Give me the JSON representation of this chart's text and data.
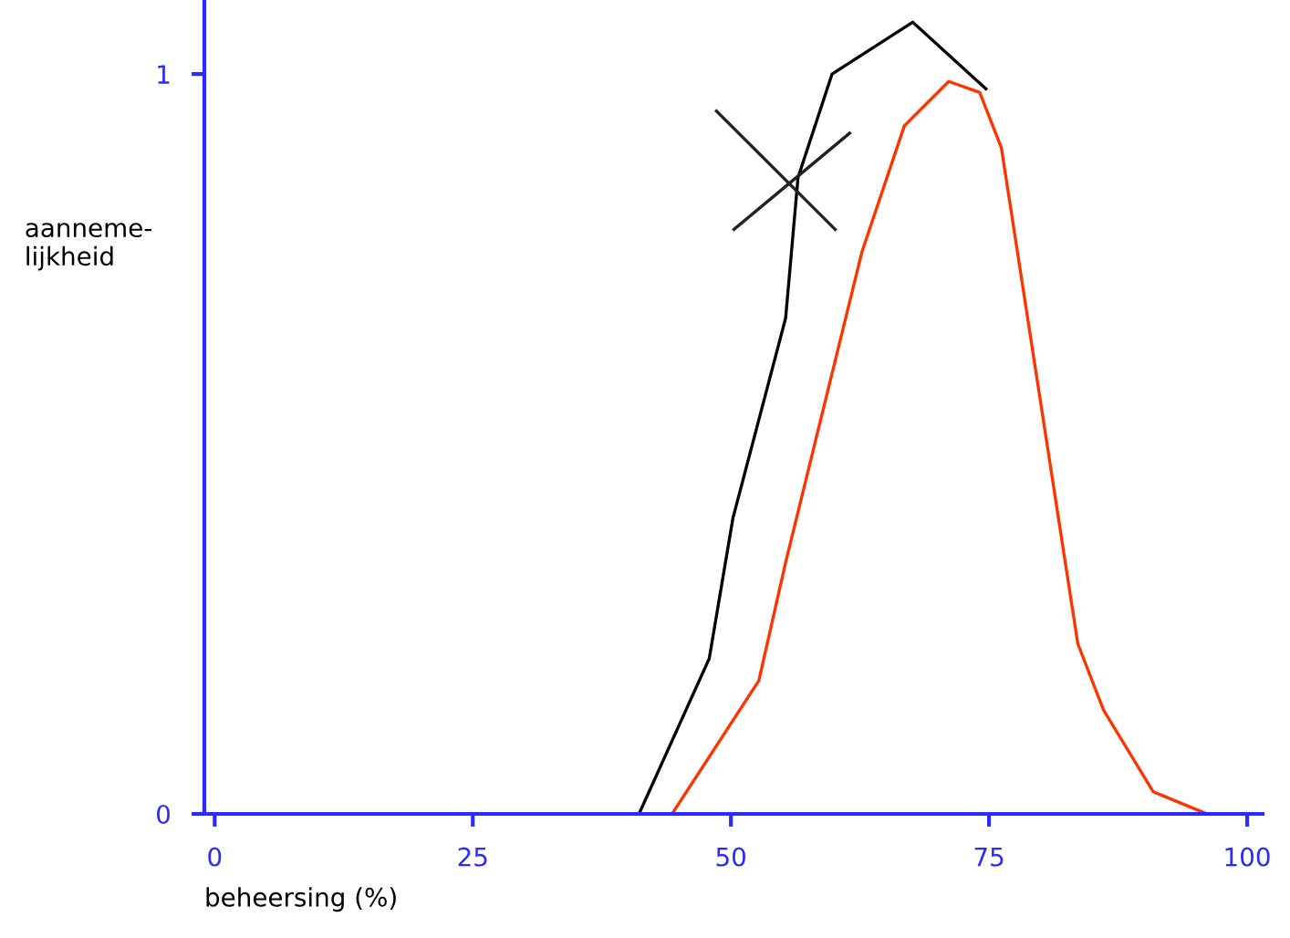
{
  "chart_data": {
    "type": "line",
    "xlabel": "beheersing (%)",
    "ylabel": "aanneme-\nlijkheid",
    "xlim": [
      -1,
      101.5
    ],
    "ylim": [
      0,
      1.1
    ],
    "xticks": [
      0,
      25,
      50,
      75,
      100
    ],
    "yticks": [
      0,
      1
    ],
    "series": [
      {
        "color": "#000000",
        "x": [
          41.1,
          47.9,
          50.2,
          55.3,
          56.5,
          59.8,
          67.6,
          74.7
        ],
        "values": [
          0,
          0.21,
          0.4,
          0.67,
          0.86,
          1.0,
          1.07,
          0.98
        ]
      },
      {
        "color": "#ff3300",
        "x": [
          44.3,
          52.7,
          55.3,
          62.7,
          66.8,
          71.1,
          74.1,
          76.2,
          83.6,
          86.1,
          90.9,
          96.1
        ],
        "values": [
          0,
          0.18,
          0.34,
          0.76,
          0.93,
          0.99,
          0.975,
          0.9,
          0.23,
          0.14,
          0.03,
          0
        ]
      },
      {
        "color": "#222222",
        "x": [
          48.6,
          60.1
        ],
        "values": [
          0.95,
          0.79
        ]
      },
      {
        "color": "#222222",
        "x": [
          50.3,
          61.5
        ],
        "values": [
          0.79,
          0.92
        ]
      }
    ]
  }
}
